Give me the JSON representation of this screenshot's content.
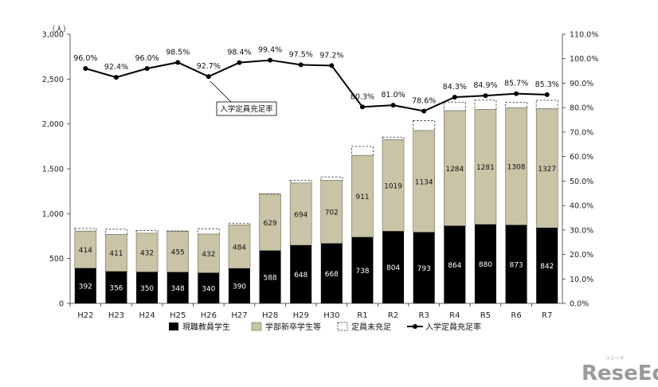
{
  "chart_data": {
    "type": "bar",
    "stacked": true,
    "categories": [
      "H22",
      "H23",
      "H24",
      "H25",
      "H26",
      "H27",
      "H28",
      "H29",
      "H30",
      "R1",
      "R2",
      "R3",
      "R4",
      "R5",
      "R6",
      "R7"
    ],
    "series": [
      {
        "name": "現職教員学生",
        "values": [
          392,
          356,
          350,
          348,
          340,
          390,
          588,
          648,
          668,
          738,
          804,
          793,
          864,
          880,
          873,
          842
        ],
        "color": "#000000"
      },
      {
        "name": "学部新卒学生等",
        "values": [
          414,
          411,
          432,
          455,
          432,
          484,
          629,
          694,
          702,
          911,
          1019,
          1134,
          1284,
          1281,
          1308,
          1327
        ],
        "color": "#c9c4a6"
      },
      {
        "name": "定員未充足",
        "values": [
          30,
          60,
          30,
          5,
          60,
          20,
          5,
          30,
          40,
          100,
          30,
          110,
          95,
          105,
          60,
          95
        ],
        "style": "dashed-outline"
      },
      {
        "name": "入学定員充足率",
        "axis": "right",
        "type": "line",
        "values": [
          96.0,
          92.4,
          96.0,
          98.5,
          92.7,
          98.4,
          99.4,
          97.5,
          97.2,
          80.3,
          81.0,
          78.6,
          84.3,
          84.9,
          85.7,
          85.3
        ],
        "labels": [
          "96.0%",
          "92.4%",
          "96.0%",
          "98.5%",
          "92.7%",
          "98.4%",
          "99.4%",
          "97.5%",
          "97.2%",
          "80.3%",
          "81.0%",
          "78.6%",
          "84.3%",
          "84.9%",
          "85.7%",
          "85.3%"
        ]
      }
    ],
    "y_left": {
      "unit": "（人）",
      "ylim": [
        0,
        3000
      ],
      "ticks": [
        "0",
        "500",
        "1,000",
        "1,500",
        "2,000",
        "2,500",
        "3,000"
      ]
    },
    "y_right": {
      "ylim": [
        0,
        110
      ],
      "ticks": [
        "0.0%",
        "10.0%",
        "20.0%",
        "30.0%",
        "40.0%",
        "50.0%",
        "60.0%",
        "70.0%",
        "80.0%",
        "90.0%",
        "100.0%",
        "110.0%"
      ]
    },
    "annotation": "入学定員充足率",
    "legend": [
      {
        "label": "現職教員学生",
        "symbol": "black-box"
      },
      {
        "label": "学部新卒学生等",
        "symbol": "khaki-box"
      },
      {
        "label": "定員未充足",
        "symbol": "dashed-box"
      },
      {
        "label": "入学定員充足率",
        "symbol": "line-marker"
      }
    ],
    "legend_position": "bottom"
  },
  "watermark": {
    "text": "ReseEd",
    "subtext": "リシード"
  }
}
